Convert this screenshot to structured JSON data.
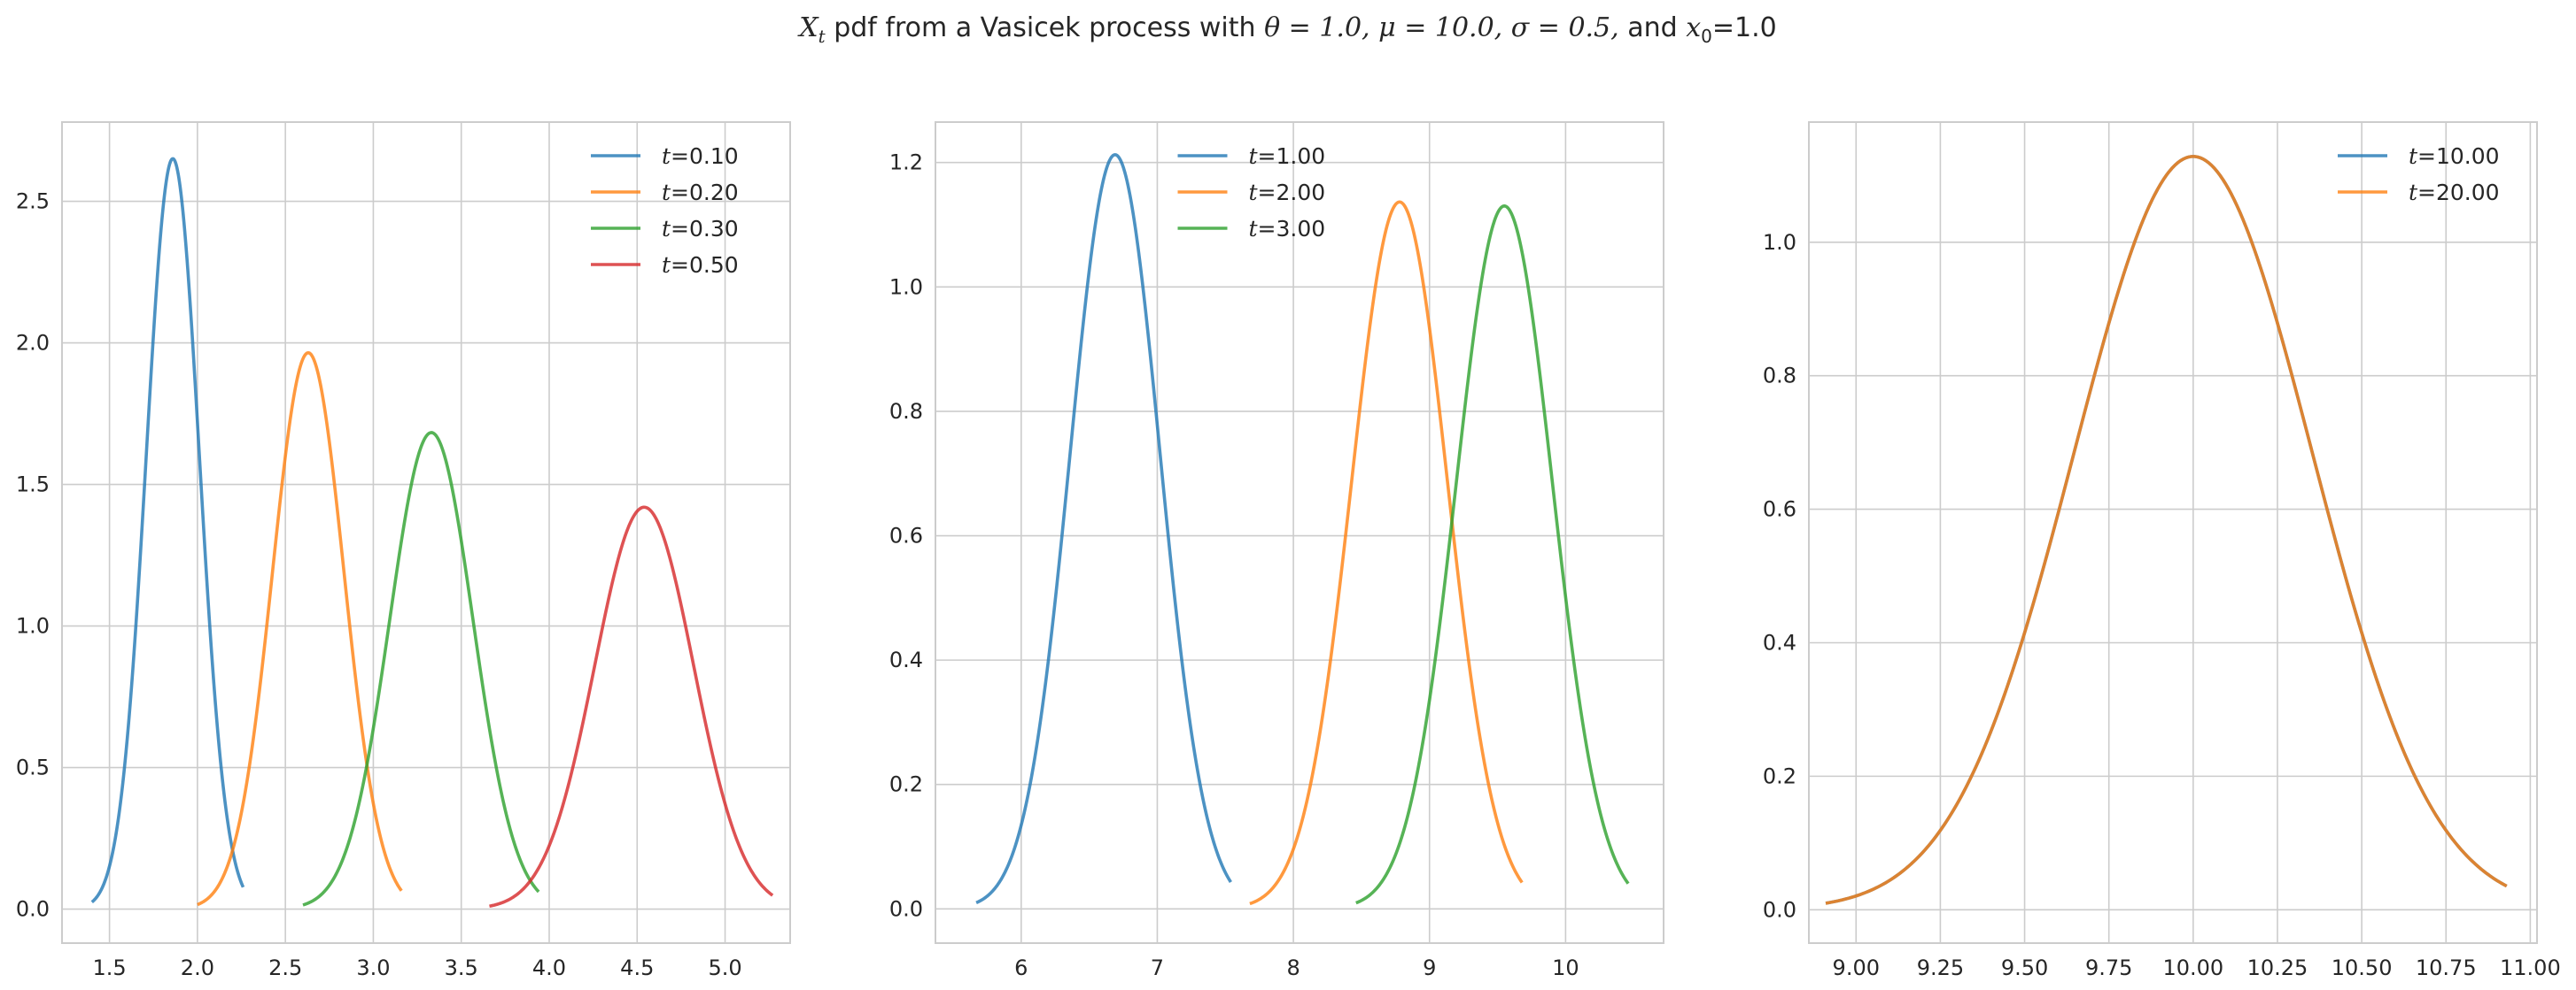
{
  "title": {
    "x_symbol": "X",
    "x_subscript": "t",
    "text_before": " pdf from a Vasicek process with ",
    "theta": "θ = 1.0,",
    "mu": "μ = 10.0,",
    "sigma": "σ = 0.5,",
    "text_and": " and ",
    "x0_symbol": "x",
    "x0_subscript": "0",
    "x0_value": "=1.0"
  },
  "chart_data": [
    {
      "type": "line",
      "xlim": [
        1.23,
        5.37
      ],
      "ylim": [
        -0.12,
        2.78
      ],
      "xticks": [
        1.5,
        2.0,
        2.5,
        3.0,
        3.5,
        4.0,
        4.5,
        5.0
      ],
      "xtick_labels": [
        "1.5",
        "2.0",
        "2.5",
        "3.0",
        "3.5",
        "4.0",
        "4.5",
        "5.0"
      ],
      "yticks": [
        0.0,
        0.5,
        1.0,
        1.5,
        2.0,
        2.5
      ],
      "ytick_labels": [
        "0.0",
        "0.5",
        "1.0",
        "1.5",
        "2.0",
        "2.5"
      ],
      "grid": true,
      "legend_position": "upper right",
      "series": [
        {
          "name": "t=0.10",
          "legend_var": "t",
          "legend_val": "=0.10",
          "color": "#1f77b4",
          "mean": 1.86,
          "sd": 0.1505,
          "x_range": [
            1.4,
            2.26
          ]
        },
        {
          "name": "t=0.20",
          "legend_var": "t",
          "legend_val": "=0.20",
          "color": "#ff7f0e",
          "mean": 2.63,
          "sd": 0.203,
          "x_range": [
            2.0,
            3.16
          ]
        },
        {
          "name": "t=0.30",
          "legend_var": "t",
          "legend_val": "=0.30",
          "color": "#2ca02c",
          "mean": 3.33,
          "sd": 0.237,
          "x_range": [
            2.6,
            3.94
          ]
        },
        {
          "name": "t=0.50",
          "legend_var": "t",
          "legend_val": "=0.50",
          "color": "#d62728",
          "mean": 4.54,
          "sd": 0.281,
          "x_range": [
            3.66,
            5.27
          ]
        }
      ]
    },
    {
      "type": "line",
      "xlim": [
        5.37,
        10.72
      ],
      "ylim": [
        -0.055,
        1.265
      ],
      "xticks": [
        6,
        7,
        8,
        9,
        10
      ],
      "xtick_labels": [
        "6",
        "7",
        "8",
        "9",
        "10"
      ],
      "yticks": [
        0.0,
        0.2,
        0.4,
        0.6,
        0.8,
        1.0,
        1.2
      ],
      "ytick_labels": [
        "0.0",
        "0.2",
        "0.4",
        "0.6",
        "0.8",
        "1.0",
        "1.2"
      ],
      "grid": true,
      "legend_position": "upper center",
      "series": [
        {
          "name": "t=1.00",
          "legend_var": "t",
          "legend_val": "=1.00",
          "color": "#1f77b4",
          "mean": 6.69,
          "sd": 0.329,
          "x_range": [
            5.67,
            7.54
          ]
        },
        {
          "name": "t=2.00",
          "legend_var": "t",
          "legend_val": "=2.00",
          "color": "#ff7f0e",
          "mean": 8.78,
          "sd": 0.351,
          "x_range": [
            7.68,
            9.68
          ]
        },
        {
          "name": "t=3.00",
          "legend_var": "t",
          "legend_val": "=3.00",
          "color": "#2ca02c",
          "mean": 9.55,
          "sd": 0.353,
          "x_range": [
            8.46,
            10.46
          ]
        }
      ]
    },
    {
      "type": "line",
      "xlim": [
        8.86,
        11.02
      ],
      "ylim": [
        -0.05,
        1.18
      ],
      "xticks": [
        9.0,
        9.25,
        9.5,
        9.75,
        10.0,
        10.25,
        10.5,
        10.75,
        11.0
      ],
      "xtick_labels": [
        "9.00",
        "9.25",
        "9.50",
        "9.75",
        "10.00",
        "10.25",
        "10.50",
        "10.75",
        "11.00"
      ],
      "yticks": [
        0.0,
        0.2,
        0.4,
        0.6,
        0.8,
        1.0
      ],
      "ytick_labels": [
        "0.0",
        "0.2",
        "0.4",
        "0.6",
        "0.8",
        "1.0"
      ],
      "grid": true,
      "legend_position": "upper right",
      "series": [
        {
          "name": "t=10.00",
          "legend_var": "t",
          "legend_val": "=10.00",
          "color": "#1f77b4",
          "mean": 10.0,
          "sd": 0.3535,
          "x_range": [
            8.91,
            10.93
          ]
        },
        {
          "name": "t=20.00",
          "legend_var": "t",
          "legend_val": "=20.00",
          "color": "#ff7f0e",
          "mean": 10.0,
          "sd": 0.3535,
          "x_range": [
            8.91,
            10.93
          ]
        }
      ]
    }
  ]
}
